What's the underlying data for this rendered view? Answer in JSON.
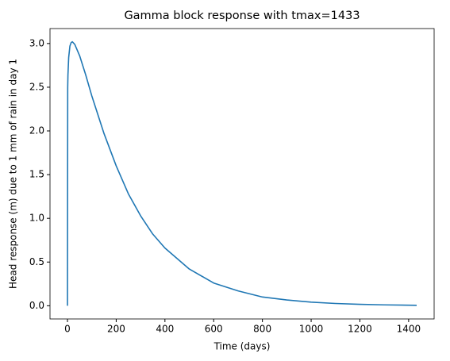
{
  "chart_data": {
    "type": "line",
    "title": "Gamma block response with tmax=1433",
    "x_label": "Time (days)",
    "y_label": "Head response (m) due to 1 mm of rain in day 1",
    "x": [
      0,
      1,
      2,
      5,
      10,
      15,
      20,
      30,
      50,
      75,
      100,
      150,
      200,
      250,
      300,
      350,
      400,
      500,
      600,
      700,
      800,
      900,
      1000,
      1100,
      1200,
      1300,
      1433
    ],
    "series": [
      {
        "color": "#1f77b4",
        "values": [
          0,
          2.49,
          2.64,
          2.84,
          2.97,
          3.01,
          3.02,
          2.99,
          2.86,
          2.64,
          2.4,
          1.97,
          1.6,
          1.28,
          1.03,
          0.82,
          0.66,
          0.42,
          0.26,
          0.17,
          0.1,
          0.066,
          0.041,
          0.026,
          0.016,
          0.01,
          0.005
        ]
      }
    ],
    "xlim": [
      -71.65,
      1504.65
    ],
    "ylim": [
      -0.151,
      3.171
    ],
    "xticks": [
      0,
      200,
      400,
      600,
      800,
      1000,
      1200,
      1400
    ],
    "yticks": [
      {
        "value": 0,
        "label": "0.0"
      },
      {
        "value": 0.5,
        "label": "0.5"
      },
      {
        "value": 1,
        "label": "1.0"
      },
      {
        "value": 1.5,
        "label": "1.5"
      },
      {
        "value": 2,
        "label": "2.0"
      },
      {
        "value": 2.5,
        "label": "2.5"
      },
      {
        "value": 3,
        "label": "3.0"
      }
    ],
    "grid": false
  }
}
